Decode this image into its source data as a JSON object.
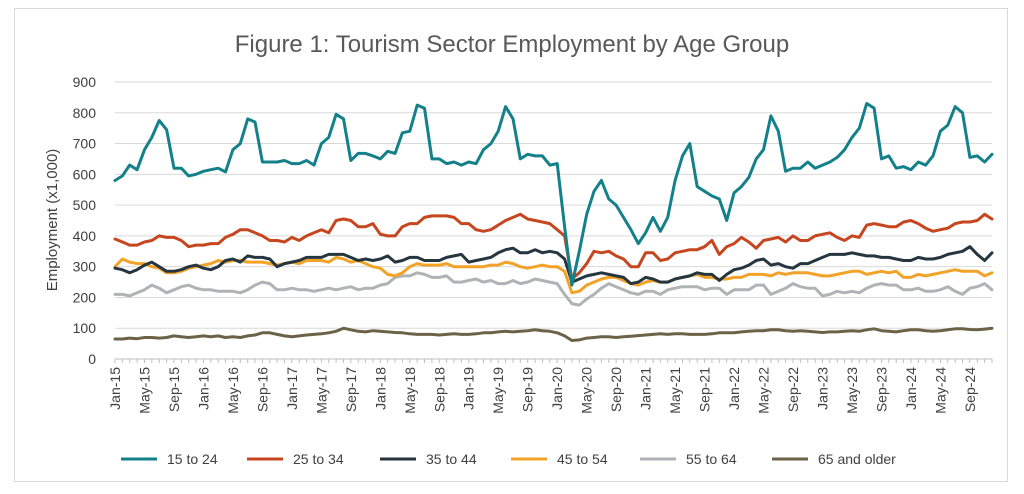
{
  "chart_data": {
    "type": "line",
    "title": "Figure 1: Tourism Sector Employment by Age Group",
    "xlabel": "",
    "ylabel": "Employment (x1,000)",
    "ylim": [
      0,
      900
    ],
    "yticks": [
      0,
      100,
      200,
      300,
      400,
      500,
      600,
      700,
      800,
      900
    ],
    "grid": true,
    "legend_position": "bottom",
    "x_tick_labels": [
      "Jan-15",
      "May-15",
      "Sep-15",
      "Jan-16",
      "May-16",
      "Sep-16",
      "Jan-17",
      "May-17",
      "Sep-17",
      "Jan-18",
      "May-18",
      "Sep-18",
      "Jan-19",
      "May-19",
      "Sep-19",
      "Jan-20",
      "May-20",
      "Sep-20",
      "Jan-21",
      "May-21",
      "Sep-21",
      "Jan-22",
      "May-22",
      "Sep-22",
      "Jan-23",
      "May-23",
      "Sep-23",
      "Jan-24",
      "May-24",
      "Sep-24"
    ],
    "x_start": "Jan-15",
    "x_end": "Dec-24",
    "series": [
      {
        "name": "15 to 24",
        "color": "#13808a",
        "values": [
          580,
          595,
          630,
          615,
          680,
          720,
          775,
          745,
          620,
          620,
          595,
          600,
          610,
          615,
          620,
          608,
          680,
          700,
          780,
          770,
          640,
          640,
          640,
          645,
          635,
          635,
          645,
          630,
          700,
          720,
          795,
          780,
          645,
          668,
          668,
          660,
          650,
          675,
          668,
          735,
          740,
          825,
          815,
          650,
          650,
          635,
          640,
          630,
          640,
          635,
          680,
          700,
          740,
          820,
          780,
          650,
          665,
          660,
          660,
          630,
          635,
          430,
          240,
          350,
          470,
          545,
          580,
          520,
          500,
          460,
          420,
          375,
          410,
          460,
          415,
          460,
          580,
          660,
          700,
          560,
          545,
          530,
          520,
          450,
          540,
          560,
          590,
          650,
          680,
          790,
          740,
          610,
          620,
          620,
          640,
          620,
          630,
          640,
          655,
          680,
          720,
          750,
          830,
          815,
          650,
          660,
          620,
          625,
          615,
          640,
          630,
          660,
          740,
          760,
          820,
          800,
          655,
          660,
          640,
          665
        ]
      },
      {
        "name": "25 to 34",
        "color": "#c5461f",
        "values": [
          390,
          380,
          370,
          370,
          380,
          385,
          400,
          395,
          395,
          385,
          365,
          370,
          370,
          375,
          375,
          395,
          405,
          420,
          420,
          410,
          400,
          385,
          385,
          380,
          395,
          385,
          400,
          410,
          420,
          410,
          450,
          455,
          450,
          430,
          430,
          440,
          405,
          400,
          400,
          430,
          440,
          440,
          460,
          465,
          465,
          465,
          460,
          440,
          440,
          420,
          415,
          420,
          435,
          450,
          460,
          470,
          455,
          450,
          445,
          440,
          420,
          400,
          260,
          280,
          310,
          350,
          345,
          350,
          335,
          325,
          300,
          300,
          345,
          345,
          320,
          325,
          345,
          350,
          355,
          355,
          365,
          385,
          340,
          365,
          375,
          395,
          380,
          360,
          385,
          390,
          395,
          380,
          400,
          385,
          385,
          400,
          405,
          410,
          395,
          385,
          400,
          395,
          435,
          440,
          435,
          430,
          430,
          445,
          450,
          440,
          425,
          415,
          420,
          425,
          440,
          445,
          445,
          450,
          470,
          455
        ]
      },
      {
        "name": "35 to 44",
        "color": "#263640",
        "values": [
          295,
          290,
          280,
          290,
          305,
          315,
          300,
          285,
          285,
          290,
          300,
          305,
          295,
          290,
          300,
          320,
          325,
          315,
          335,
          330,
          330,
          325,
          300,
          310,
          315,
          320,
          330,
          330,
          330,
          340,
          340,
          340,
          330,
          320,
          325,
          320,
          325,
          335,
          315,
          320,
          330,
          330,
          320,
          320,
          320,
          330,
          335,
          340,
          315,
          320,
          325,
          330,
          345,
          355,
          360,
          345,
          345,
          355,
          345,
          350,
          345,
          325,
          250,
          260,
          270,
          275,
          280,
          275,
          270,
          265,
          245,
          250,
          265,
          260,
          250,
          250,
          260,
          265,
          270,
          280,
          275,
          275,
          255,
          275,
          290,
          295,
          305,
          320,
          325,
          305,
          310,
          300,
          295,
          310,
          310,
          320,
          330,
          340,
          340,
          340,
          345,
          340,
          335,
          335,
          330,
          330,
          325,
          320,
          320,
          330,
          325,
          325,
          330,
          340,
          345,
          350,
          365,
          340,
          320,
          345
        ]
      },
      {
        "name": "45 to 54",
        "color": "#f2a327",
        "values": [
          300,
          325,
          315,
          310,
          310,
          300,
          295,
          280,
          280,
          285,
          295,
          300,
          305,
          310,
          320,
          315,
          320,
          320,
          315,
          315,
          315,
          310,
          305,
          310,
          315,
          310,
          320,
          320,
          320,
          315,
          330,
          325,
          315,
          320,
          310,
          300,
          295,
          275,
          270,
          280,
          300,
          310,
          305,
          305,
          305,
          310,
          300,
          300,
          300,
          300,
          300,
          305,
          305,
          315,
          310,
          300,
          295,
          300,
          305,
          300,
          300,
          285,
          215,
          220,
          240,
          250,
          260,
          265,
          265,
          255,
          245,
          240,
          250,
          255,
          250,
          250,
          260,
          265,
          270,
          275,
          265,
          265,
          260,
          260,
          265,
          265,
          275,
          275,
          275,
          270,
          280,
          275,
          280,
          280,
          280,
          275,
          270,
          270,
          275,
          280,
          285,
          285,
          275,
          280,
          285,
          280,
          285,
          265,
          265,
          275,
          270,
          275,
          280,
          285,
          290,
          285,
          285,
          285,
          270,
          280
        ]
      },
      {
        "name": "55 to 64",
        "color": "#afb3b6",
        "values": [
          210,
          210,
          205,
          215,
          225,
          240,
          230,
          215,
          225,
          235,
          240,
          230,
          225,
          225,
          220,
          220,
          220,
          215,
          225,
          240,
          250,
          245,
          225,
          225,
          230,
          225,
          225,
          220,
          225,
          230,
          225,
          230,
          235,
          225,
          230,
          230,
          240,
          245,
          265,
          270,
          270,
          280,
          275,
          265,
          265,
          270,
          250,
          250,
          255,
          260,
          250,
          255,
          245,
          245,
          255,
          245,
          250,
          260,
          255,
          250,
          245,
          210,
          180,
          175,
          195,
          210,
          230,
          245,
          235,
          225,
          215,
          210,
          220,
          220,
          210,
          225,
          230,
          235,
          235,
          235,
          225,
          230,
          230,
          210,
          225,
          225,
          225,
          240,
          240,
          210,
          220,
          230,
          245,
          235,
          230,
          230,
          205,
          210,
          220,
          215,
          220,
          215,
          230,
          240,
          245,
          240,
          240,
          225,
          225,
          230,
          220,
          220,
          225,
          235,
          220,
          210,
          230,
          235,
          245,
          225
        ]
      },
      {
        "name": "65 and older",
        "color": "#6c6248",
        "values": [
          65,
          65,
          68,
          66,
          70,
          70,
          68,
          70,
          75,
          72,
          70,
          72,
          75,
          72,
          75,
          70,
          72,
          70,
          75,
          78,
          85,
          85,
          80,
          75,
          72,
          75,
          78,
          80,
          82,
          85,
          90,
          100,
          95,
          90,
          88,
          92,
          90,
          88,
          86,
          85,
          82,
          80,
          80,
          80,
          78,
          80,
          82,
          80,
          80,
          82,
          85,
          85,
          88,
          90,
          88,
          90,
          92,
          95,
          92,
          90,
          85,
          75,
          60,
          62,
          68,
          70,
          72,
          72,
          70,
          72,
          74,
          76,
          78,
          80,
          82,
          80,
          82,
          82,
          80,
          80,
          80,
          82,
          85,
          85,
          85,
          88,
          90,
          92,
          92,
          95,
          95,
          92,
          90,
          92,
          90,
          88,
          86,
          88,
          88,
          90,
          92,
          90,
          95,
          98,
          92,
          90,
          88,
          92,
          95,
          95,
          92,
          90,
          92,
          95,
          98,
          98,
          96,
          95,
          97,
          100
        ]
      }
    ]
  }
}
